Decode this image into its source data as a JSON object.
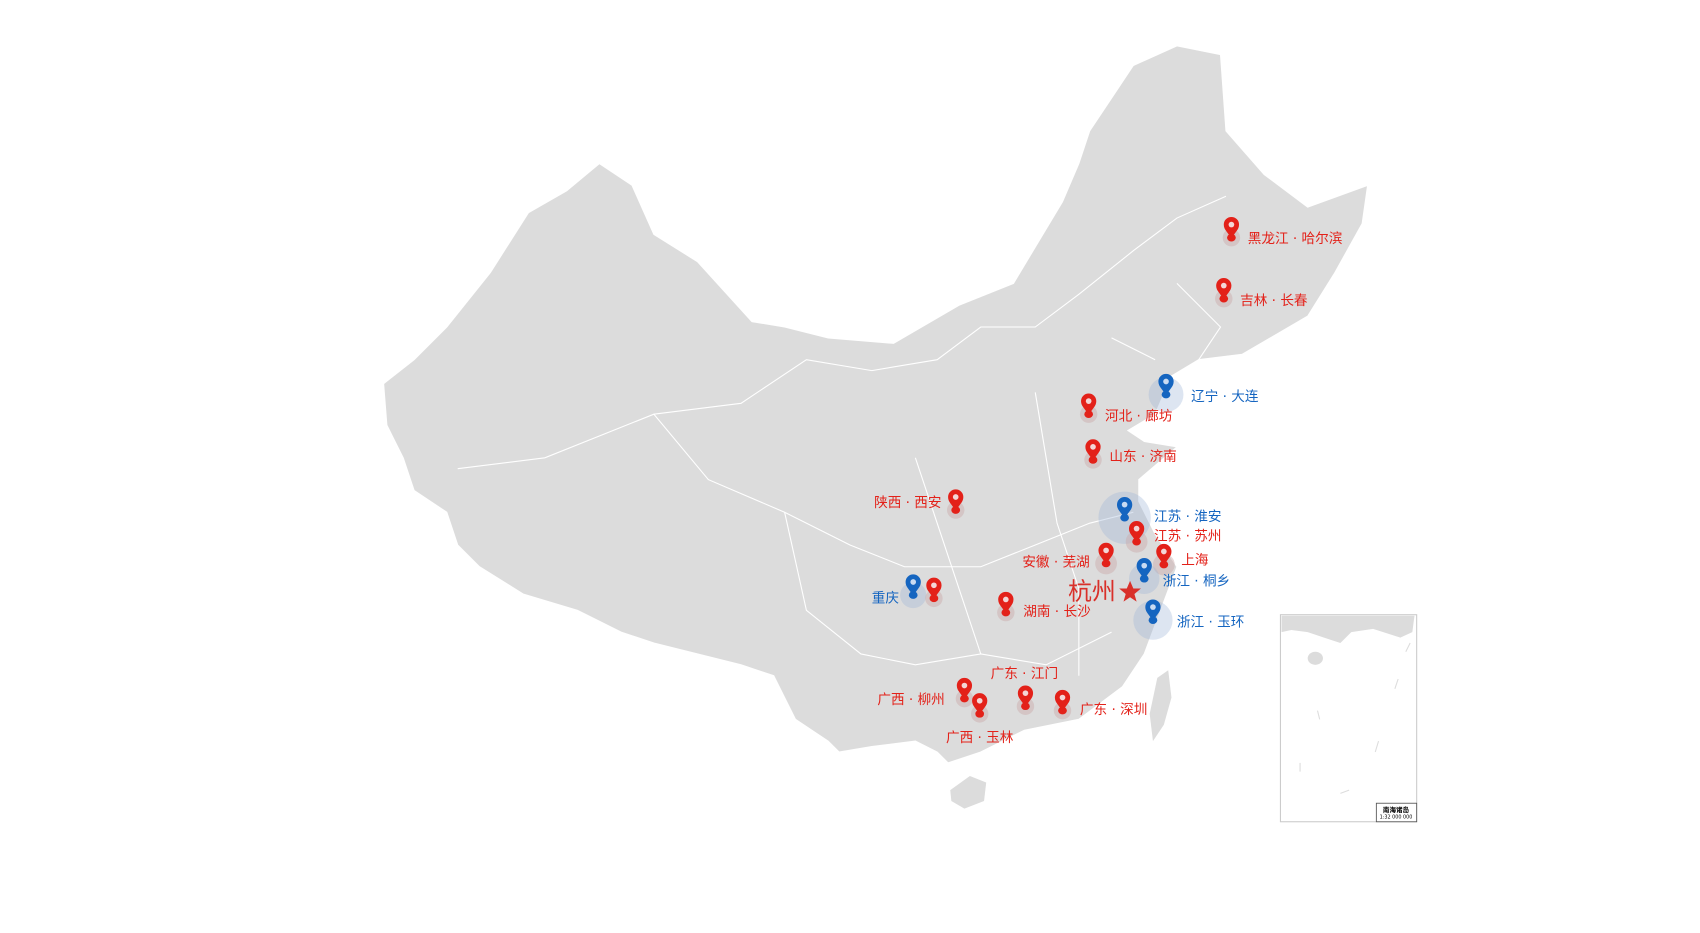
{
  "map": {
    "colors": {
      "land": "#dcdcdc",
      "border": "#ffffff",
      "red": "#e32119",
      "blue": "#1565c0",
      "capital_star": "#d9302a"
    },
    "highlight": {
      "label": "杭州",
      "icon": "star-icon"
    },
    "markers": [
      {
        "label": "黑龙江 · 哈尔滨",
        "color": "red"
      },
      {
        "label": "吉林 · 长春",
        "color": "red"
      },
      {
        "label": "辽宁 · 大连",
        "color": "blue"
      },
      {
        "label": "河北 · 廊坊",
        "color": "red"
      },
      {
        "label": "山东 · 济南",
        "color": "red"
      },
      {
        "label": "陕西 · 西安",
        "color": "red"
      },
      {
        "label": "江苏 · 淮安",
        "color": "blue"
      },
      {
        "label": "江苏 · 苏州",
        "color": "red"
      },
      {
        "label": "安徽 · 芜湖",
        "color": "red"
      },
      {
        "label": "上海",
        "color": "red"
      },
      {
        "label": "浙江 · 桐乡",
        "color": "blue"
      },
      {
        "label": "浙江 · 玉环",
        "color": "blue"
      },
      {
        "label": "重庆",
        "color": "blue"
      },
      {
        "label": "",
        "color": "red"
      },
      {
        "label": "湖南 · 长沙",
        "color": "red"
      },
      {
        "label": "广东 · 江门",
        "color": "red"
      },
      {
        "label": "广东 · 深圳",
        "color": "red"
      },
      {
        "label": "广西 · 柳州",
        "color": "red"
      },
      {
        "label": "广西 · 玉林",
        "color": "red"
      }
    ],
    "inset": {
      "title": "南海诸岛",
      "scale": "1:32 000 000"
    }
  }
}
